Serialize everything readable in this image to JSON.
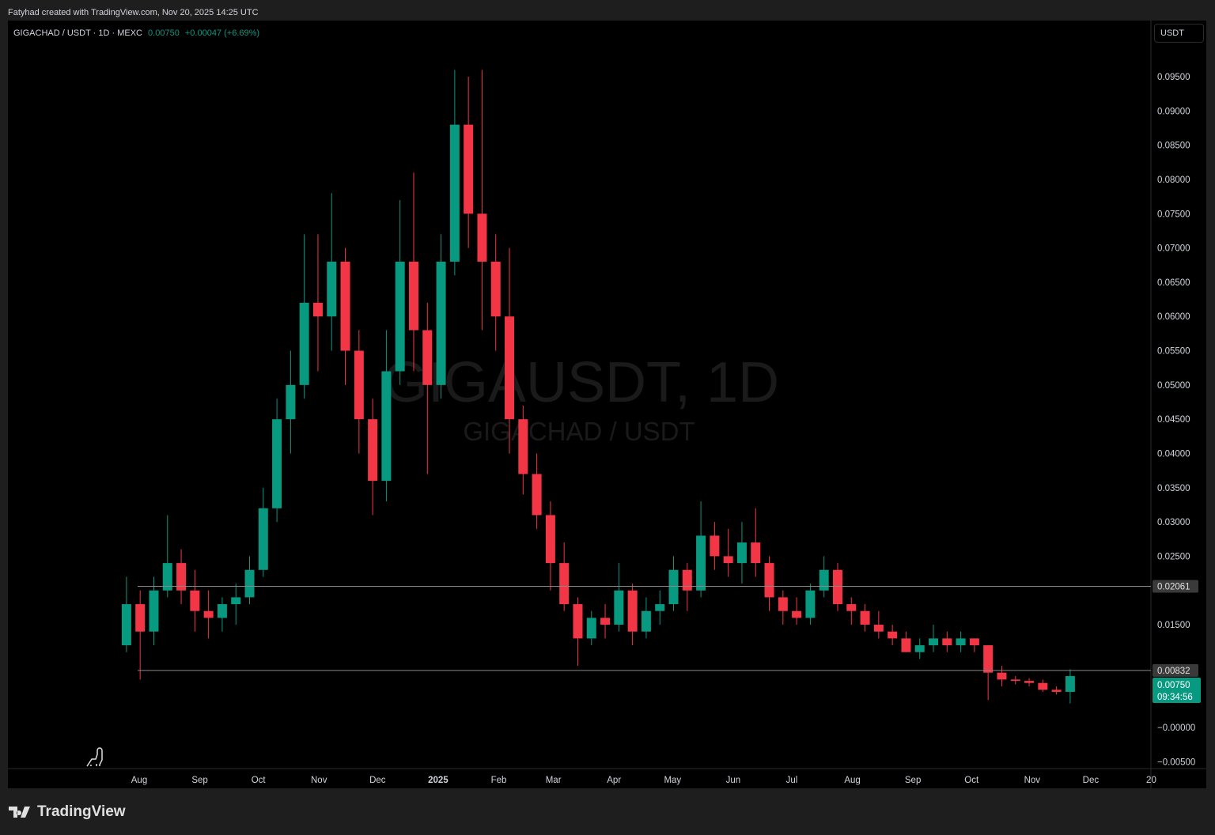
{
  "credit": "Fatyhad created with TradingView.com, Nov 20, 2025 14:25 UTC",
  "legend": {
    "symbol": "GIGACHAD / USDT · 1D · MEXC",
    "price": "0.00750",
    "change": "+0.00047 (+6.69%)"
  },
  "currency_button": "USDT",
  "watermark": {
    "line1": "GIGAUSDT, 1D",
    "line2": "GIGACHAD / USDT"
  },
  "brand": "TradingView",
  "colors": {
    "up": "#089981",
    "down": "#f23645",
    "background": "#000000",
    "grid_line": "#888888"
  },
  "chart_data": {
    "type": "candlestick",
    "ylim": [
      -0.005,
      0.098
    ],
    "y_ticks": [
      "0.09500",
      "0.09000",
      "0.08500",
      "0.08000",
      "0.07500",
      "0.07000",
      "0.06500",
      "0.06000",
      "0.05500",
      "0.05000",
      "0.04500",
      "0.04000",
      "0.03500",
      "0.03000",
      "0.02500",
      "0.01500",
      "−0.00000",
      "−0.00500"
    ],
    "y_tick_values": [
      0.095,
      0.09,
      0.085,
      0.08,
      0.075,
      0.07,
      0.065,
      0.06,
      0.055,
      0.05,
      0.045,
      0.04,
      0.035,
      0.03,
      0.025,
      0.015,
      0,
      -0.005
    ],
    "x_ticks": [
      [
        "2024-08-01",
        "Aug"
      ],
      [
        "2024-09-01",
        "Sep"
      ],
      [
        "2024-10-01",
        "Oct"
      ],
      [
        "2024-11-01",
        "Nov"
      ],
      [
        "2024-12-01",
        "Dec"
      ],
      [
        "2025-01-01",
        "2025"
      ],
      [
        "2025-02-01",
        "Feb"
      ],
      [
        "2025-03-01",
        "Mar"
      ],
      [
        "2025-04-01",
        "Apr"
      ],
      [
        "2025-05-01",
        "May"
      ],
      [
        "2025-06-01",
        "Jun"
      ],
      [
        "2025-07-01",
        "Jul"
      ],
      [
        "2025-08-01",
        "Aug"
      ],
      [
        "2025-09-01",
        "Sep"
      ],
      [
        "2025-10-01",
        "Oct"
      ],
      [
        "2025-11-01",
        "Nov"
      ],
      [
        "2025-12-01",
        "Dec"
      ],
      [
        "2026-01-01",
        "20"
      ]
    ],
    "horizontal_lines": [
      {
        "value": 0.02061,
        "label": "0.02061"
      },
      {
        "value": 0.00832,
        "label": "0.00832"
      }
    ],
    "last_price": {
      "value": 0.0075,
      "label": "0.00750",
      "countdown": "09:34:56"
    },
    "candles": [
      [
        "2024-07-22",
        0.012,
        0.022,
        0.011,
        0.018
      ],
      [
        "2024-07-29",
        0.018,
        0.02,
        0.007,
        0.014
      ],
      [
        "2024-08-05",
        0.014,
        0.022,
        0.012,
        0.02
      ],
      [
        "2024-08-12",
        0.02,
        0.031,
        0.019,
        0.024
      ],
      [
        "2024-08-19",
        0.024,
        0.026,
        0.018,
        0.02
      ],
      [
        "2024-08-26",
        0.02,
        0.023,
        0.014,
        0.017
      ],
      [
        "2024-09-02",
        0.017,
        0.02,
        0.013,
        0.016
      ],
      [
        "2024-09-09",
        0.016,
        0.019,
        0.014,
        0.018
      ],
      [
        "2024-09-16",
        0.018,
        0.021,
        0.015,
        0.019
      ],
      [
        "2024-09-23",
        0.019,
        0.025,
        0.018,
        0.023
      ],
      [
        "2024-09-30",
        0.023,
        0.035,
        0.022,
        0.032
      ],
      [
        "2024-10-07",
        0.032,
        0.048,
        0.03,
        0.045
      ],
      [
        "2024-10-14",
        0.045,
        0.055,
        0.04,
        0.05
      ],
      [
        "2024-10-21",
        0.05,
        0.072,
        0.048,
        0.062
      ],
      [
        "2024-10-28",
        0.062,
        0.072,
        0.052,
        0.06
      ],
      [
        "2024-11-04",
        0.06,
        0.078,
        0.055,
        0.068
      ],
      [
        "2024-11-11",
        0.068,
        0.07,
        0.05,
        0.055
      ],
      [
        "2024-11-18",
        0.055,
        0.058,
        0.04,
        0.045
      ],
      [
        "2024-11-25",
        0.045,
        0.048,
        0.031,
        0.036
      ],
      [
        "2024-12-02",
        0.036,
        0.058,
        0.033,
        0.052
      ],
      [
        "2024-12-09",
        0.052,
        0.077,
        0.05,
        0.068
      ],
      [
        "2024-12-16",
        0.068,
        0.081,
        0.052,
        0.058
      ],
      [
        "2024-12-23",
        0.058,
        0.062,
        0.037,
        0.05
      ],
      [
        "2024-12-30",
        0.05,
        0.072,
        0.048,
        0.068
      ],
      [
        "2025-01-06",
        0.068,
        0.096,
        0.066,
        0.088
      ],
      [
        "2025-01-13",
        0.088,
        0.095,
        0.07,
        0.075
      ],
      [
        "2025-01-20",
        0.075,
        0.096,
        0.058,
        0.068
      ],
      [
        "2025-01-27",
        0.068,
        0.072,
        0.055,
        0.06
      ],
      [
        "2025-02-03",
        0.06,
        0.07,
        0.04,
        0.045
      ],
      [
        "2025-02-10",
        0.045,
        0.047,
        0.034,
        0.037
      ],
      [
        "2025-02-17",
        0.037,
        0.04,
        0.029,
        0.031
      ],
      [
        "2025-02-24",
        0.031,
        0.033,
        0.02,
        0.024
      ],
      [
        "2025-03-03",
        0.024,
        0.027,
        0.017,
        0.018
      ],
      [
        "2025-03-10",
        0.018,
        0.019,
        0.009,
        0.013
      ],
      [
        "2025-03-17",
        0.013,
        0.017,
        0.012,
        0.016
      ],
      [
        "2025-03-24",
        0.016,
        0.018,
        0.013,
        0.015
      ],
      [
        "2025-03-31",
        0.015,
        0.024,
        0.014,
        0.02
      ],
      [
        "2025-04-07",
        0.02,
        0.021,
        0.012,
        0.014
      ],
      [
        "2025-04-14",
        0.014,
        0.019,
        0.013,
        0.017
      ],
      [
        "2025-04-21",
        0.017,
        0.02,
        0.015,
        0.018
      ],
      [
        "2025-04-28",
        0.018,
        0.025,
        0.017,
        0.023
      ],
      [
        "2025-05-05",
        0.023,
        0.024,
        0.017,
        0.02
      ],
      [
        "2025-05-12",
        0.02,
        0.033,
        0.019,
        0.028
      ],
      [
        "2025-05-19",
        0.028,
        0.03,
        0.023,
        0.025
      ],
      [
        "2025-05-26",
        0.025,
        0.029,
        0.022,
        0.024
      ],
      [
        "2025-06-02",
        0.024,
        0.03,
        0.021,
        0.027
      ],
      [
        "2025-06-09",
        0.027,
        0.032,
        0.022,
        0.024
      ],
      [
        "2025-06-16",
        0.024,
        0.025,
        0.017,
        0.019
      ],
      [
        "2025-06-23",
        0.019,
        0.02,
        0.015,
        0.017
      ],
      [
        "2025-06-30",
        0.017,
        0.019,
        0.015,
        0.016
      ],
      [
        "2025-07-07",
        0.016,
        0.021,
        0.015,
        0.02
      ],
      [
        "2025-07-14",
        0.02,
        0.025,
        0.019,
        0.023
      ],
      [
        "2025-07-21",
        0.023,
        0.024,
        0.017,
        0.018
      ],
      [
        "2025-07-28",
        0.018,
        0.019,
        0.015,
        0.017
      ],
      [
        "2025-08-04",
        0.017,
        0.018,
        0.014,
        0.015
      ],
      [
        "2025-08-11",
        0.015,
        0.017,
        0.013,
        0.014
      ],
      [
        "2025-08-18",
        0.014,
        0.015,
        0.012,
        0.013
      ],
      [
        "2025-08-25",
        0.013,
        0.014,
        0.011,
        0.011
      ],
      [
        "2025-09-01",
        0.011,
        0.013,
        0.01,
        0.012
      ],
      [
        "2025-09-08",
        0.012,
        0.015,
        0.011,
        0.013
      ],
      [
        "2025-09-15",
        0.013,
        0.014,
        0.011,
        0.012
      ],
      [
        "2025-09-22",
        0.012,
        0.014,
        0.011,
        0.013
      ],
      [
        "2025-09-29",
        0.013,
        0.013,
        0.011,
        0.012
      ],
      [
        "2025-10-06",
        0.012,
        0.012,
        0.004,
        0.008
      ],
      [
        "2025-10-13",
        0.008,
        0.009,
        0.006,
        0.007
      ],
      [
        "2025-10-20",
        0.007,
        0.0075,
        0.0063,
        0.0068
      ],
      [
        "2025-10-27",
        0.0068,
        0.0072,
        0.006,
        0.0065
      ],
      [
        "2025-11-03",
        0.0065,
        0.007,
        0.0052,
        0.0055
      ],
      [
        "2025-11-10",
        0.0055,
        0.006,
        0.0048,
        0.0052
      ],
      [
        "2025-11-17",
        0.0052,
        0.0085,
        0.0035,
        0.0075
      ]
    ]
  }
}
